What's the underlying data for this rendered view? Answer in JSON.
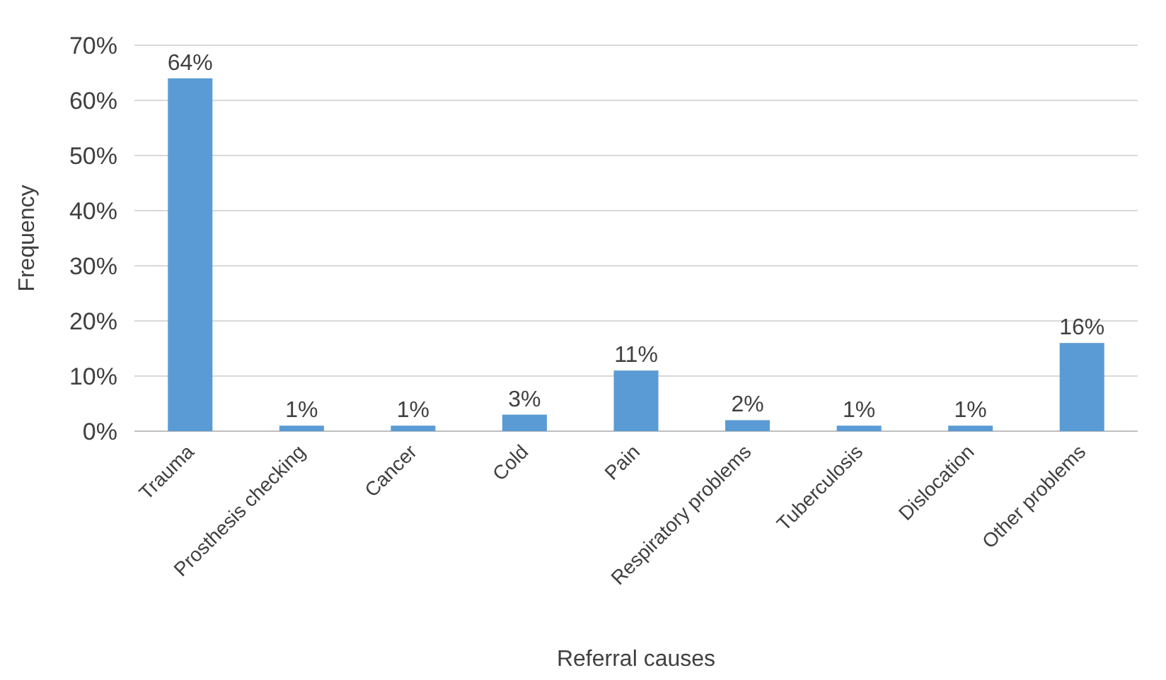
{
  "chart_data": {
    "type": "bar",
    "xlabel": "Referral causes",
    "ylabel": "Frequency",
    "categories": [
      "Trauma",
      "Prosthesis checking",
      "Cancer",
      "Cold",
      "Pain",
      "Respiratory problems",
      "Tuberculosis",
      "Dislocation",
      "Other problems"
    ],
    "values": [
      64,
      1,
      1,
      3,
      11,
      2,
      1,
      1,
      16
    ],
    "value_labels": [
      "64%",
      "1%",
      "1%",
      "3%",
      "11%",
      "2%",
      "1%",
      "1%",
      "16%"
    ],
    "color": "#5b9bd5",
    "ylim": [
      0,
      70
    ],
    "yticks": [
      {
        "value": 0,
        "label": "0%"
      },
      {
        "value": 10,
        "label": "10%"
      },
      {
        "value": 20,
        "label": "20%"
      },
      {
        "value": 30,
        "label": "30%"
      },
      {
        "value": 40,
        "label": "40%"
      },
      {
        "value": 50,
        "label": "50%"
      },
      {
        "value": 60,
        "label": "60%"
      },
      {
        "value": 70,
        "label": "70%"
      }
    ],
    "grid": "y"
  }
}
